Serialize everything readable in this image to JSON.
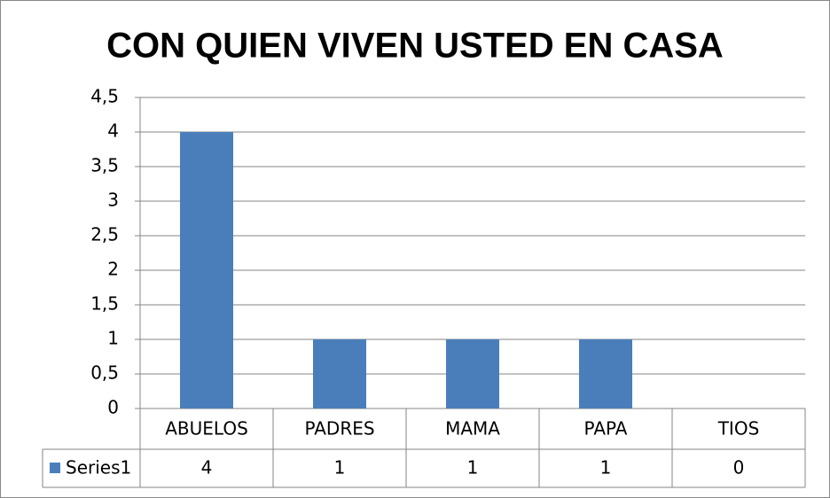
{
  "chart_data": {
    "type": "bar",
    "title": "CON QUIEN VIVEN USTED EN CASA",
    "categories": [
      "ABUELOS",
      "PADRES",
      "MAMA",
      "PAPA",
      "TIOS"
    ],
    "series": [
      {
        "name": "Series1",
        "color": "#4a7ebb",
        "values": [
          4,
          1,
          1,
          1,
          0
        ]
      }
    ],
    "ylim": [
      0,
      4.5
    ],
    "yticks": [
      0,
      {
        "value": 0.5,
        "label": "0,5"
      },
      1,
      {
        "value": 1.5,
        "label": "1,5"
      },
      2,
      {
        "value": 2.5,
        "label": "2,5"
      },
      3,
      {
        "value": 3.5,
        "label": "3,5"
      },
      4,
      {
        "value": 4.5,
        "label": "4,5"
      }
    ],
    "grid": true,
    "legend": "data-table"
  }
}
